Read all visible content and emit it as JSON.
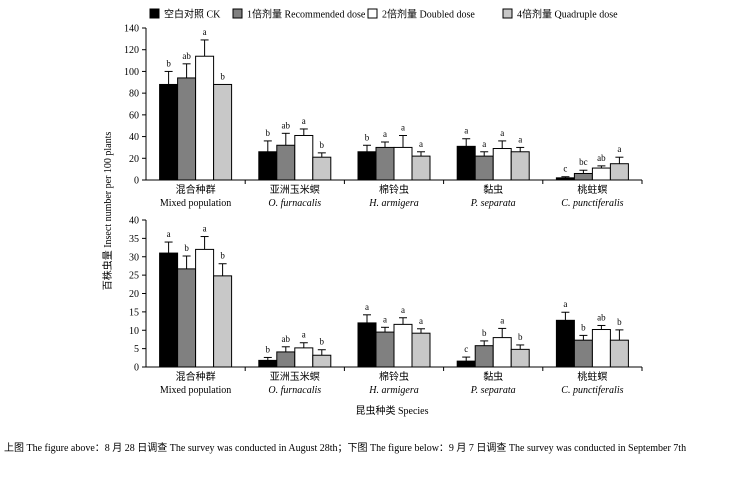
{
  "legend": [
    {
      "label": "空白对照 CK",
      "color": "#000000"
    },
    {
      "label": "1倍剂量 Recommended dose",
      "color": "#808080"
    },
    {
      "label": "2倍剂量 Doubled dose",
      "color": "#ffffff"
    },
    {
      "label": "4倍剂量 Quadruple dose",
      "color": "#c8c8c8"
    }
  ],
  "caption": "上图 The figure above：8 月 28 日调查 The survey was conducted in August 28th；下图 The figure below：9 月 7 日调查 The survey was conducted in September 7th",
  "chart_data": {
    "type": "bar",
    "ylabel": "百株虫量 Insect number per 100 plants",
    "xlabel": "昆虫种类 Species",
    "categories": [
      {
        "zh": "混合种群",
        "en": "Mixed population",
        "italic": false
      },
      {
        "zh": "亚洲玉米螟",
        "en": "O. furnacalis",
        "italic": true
      },
      {
        "zh": "棉铃虫",
        "en": "H. armigera",
        "italic": true
      },
      {
        "zh": "黏虫",
        "en": "P. separata",
        "italic": true
      },
      {
        "zh": "桃蛀螟",
        "en": "C. punctiferalis",
        "italic": true
      }
    ],
    "panels": [
      {
        "ylim": [
          0,
          140
        ],
        "yticks": [
          0,
          20,
          40,
          60,
          80,
          100,
          120,
          140
        ],
        "series": [
          {
            "name": "空白对照 CK",
            "values": [
              88,
              26,
              26,
              31,
              2
            ],
            "errors": [
              12,
              10,
              6,
              7,
              1
            ],
            "letters": [
              "b",
              "b",
              "b",
              "a",
              "c"
            ]
          },
          {
            "name": "1倍剂量 Recommended dose",
            "values": [
              94,
              32,
              30,
              22,
              6
            ],
            "errors": [
              13,
              11,
              5,
              4,
              3
            ],
            "letters": [
              "ab",
              "ab",
              "a",
              "a",
              "bc"
            ]
          },
          {
            "name": "2倍剂量 Doubled dose",
            "values": [
              114,
              41,
              30,
              29,
              11
            ],
            "errors": [
              15,
              6,
              11,
              7,
              2
            ],
            "letters": [
              "a",
              "a",
              "a",
              "a",
              "ab"
            ]
          },
          {
            "name": "4倍剂量 Quadruple dose",
            "values": [
              88,
              21,
              22,
              26,
              15
            ],
            "errors": [
              0,
              4,
              4,
              4,
              6
            ],
            "letters": [
              "b",
              "b",
              "a",
              "a",
              "a"
            ]
          }
        ]
      },
      {
        "ylim": [
          0,
          40
        ],
        "yticks": [
          0,
          5,
          10,
          15,
          20,
          25,
          30,
          35,
          40
        ],
        "series": [
          {
            "name": "空白对照 CK",
            "values": [
              31,
              1.8,
              12,
              1.6,
              12.7
            ],
            "errors": [
              3,
              0.8,
              2.2,
              1.1,
              2.2
            ],
            "letters": [
              "a",
              "b",
              "a",
              "c",
              "a"
            ]
          },
          {
            "name": "1倍剂量 Recommended dose",
            "values": [
              26.7,
              4.1,
              9.5,
              5.8,
              7.3
            ],
            "errors": [
              3.5,
              1.4,
              1.3,
              1.3,
              1.3
            ],
            "letters": [
              "b",
              "ab",
              "a",
              "b",
              "b"
            ]
          },
          {
            "name": "2倍剂量 Doubled dose",
            "values": [
              32,
              5.2,
              11.6,
              8,
              10.2
            ],
            "errors": [
              3.5,
              1.4,
              1.8,
              2.5,
              1.1
            ],
            "letters": [
              "a",
              "a",
              "a",
              "a",
              "ab"
            ]
          },
          {
            "name": "4倍剂量 Quadruple dose",
            "values": [
              24.8,
              3.2,
              9.2,
              4.8,
              7.3
            ],
            "errors": [
              3.3,
              1.5,
              1.2,
              1.2,
              2.8
            ],
            "letters": [
              "b",
              "b",
              "a",
              "b",
              "b"
            ]
          }
        ]
      }
    ]
  }
}
